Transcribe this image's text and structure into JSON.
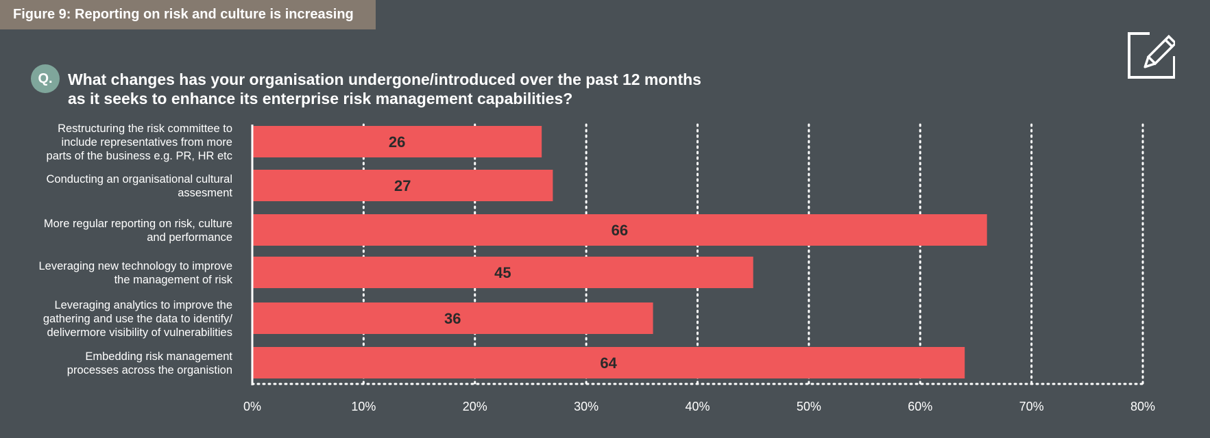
{
  "figure_title": "Figure 9: Reporting on risk and culture is increasing",
  "question_badge": "Q.",
  "question_text": "What changes has your organisation undergone/introduced over the past 12 months as it seeks to enhance its enterprise risk management capabilities?",
  "icons": {
    "top_right": "edit-pencil-icon"
  },
  "colors": {
    "background": "#495055",
    "title_bar": "#857a6f",
    "bar": "#f0585a",
    "badge": "#7fa69b",
    "grid": "#ffffff",
    "value_label": "#2a2a2a"
  },
  "chart_data": {
    "type": "bar",
    "orientation": "horizontal",
    "categories": [
      [
        "Restructuring the risk committee to",
        "include representatives from more",
        "parts of the business e.g. PR, HR etc"
      ],
      [
        "Conducting an organisational cultural",
        "assesment"
      ],
      [
        "More regular reporting on risk, culture",
        "and performance"
      ],
      [
        "Leveraging new technology to improve",
        "the management of risk"
      ],
      [
        "Leveraging analytics to improve the",
        "gathering and use the data to identify/",
        "delivermore visibility of vulnerabilities"
      ],
      [
        "Embedding risk management",
        "processes across the organistion"
      ]
    ],
    "values": [
      26,
      27,
      66,
      45,
      36,
      64
    ],
    "xlim": [
      0,
      80
    ],
    "xticks": [
      0,
      10,
      20,
      30,
      40,
      50,
      60,
      70,
      80
    ],
    "xtick_labels": [
      "0%",
      "10%",
      "20%",
      "30%",
      "40%",
      "50%",
      "60%",
      "70%",
      "80%"
    ],
    "grid": true,
    "grid_style": "dotted",
    "data_labels": true
  }
}
